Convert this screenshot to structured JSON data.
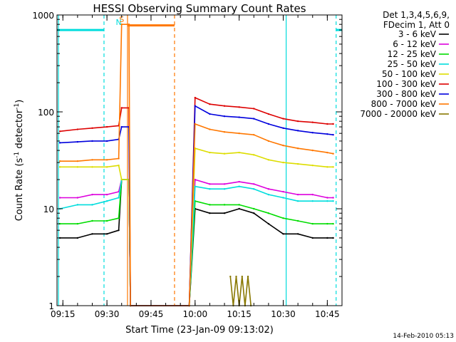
{
  "chart_data": {
    "type": "line",
    "title": "HESSI Observing Summary Count Rates",
    "xlabel": "Start Time (23-Jan-09 09:13:02)",
    "ylabel_main": "Count Rate (s",
    "ylabel_sup1": "-1",
    "ylabel_mid": " detector",
    "ylabel_sup2": "-1",
    "ylabel_end": ")",
    "footer": "14-Feb-2010 05:13",
    "y_log": true,
    "xlim": [
      "09:13",
      "10:50"
    ],
    "ylim": [
      1,
      1000
    ],
    "x_ticks": [
      "09:15",
      "09:30",
      "09:45",
      "10:00",
      "10:15",
      "10:30",
      "10:45"
    ],
    "y_ticks": [
      "1",
      "10",
      "100",
      "1000"
    ],
    "grid": false,
    "legend": {
      "position": "top-right",
      "header": [
        "Det 1,3,4,5,6,9,",
        "FDecim 1, Att 0"
      ]
    },
    "series": [
      {
        "name": "3 - 6 keV",
        "color": "#000000",
        "x": [
          "09:14",
          "09:20",
          "09:25",
          "09:30",
          "09:34",
          "09:35",
          "09:37.5",
          "09:38",
          "09:58",
          "10:00",
          "10:05",
          "10:10",
          "10:15",
          "10:20",
          "10:25",
          "10:30",
          "10:35",
          "10:40",
          "10:45",
          "10:47"
        ],
        "y": [
          5,
          5,
          5.5,
          5.5,
          6,
          20,
          20,
          1,
          1,
          10,
          9,
          9,
          10,
          9,
          7,
          5.5,
          5.5,
          5,
          5,
          5
        ]
      },
      {
        "name": "6 - 12 keV",
        "color": "#dd00dd",
        "x": [
          "09:14",
          "09:20",
          "09:25",
          "09:30",
          "09:34",
          "09:35",
          "09:37.5",
          "09:38",
          "09:58",
          "10:00",
          "10:05",
          "10:10",
          "10:15",
          "10:20",
          "10:25",
          "10:30",
          "10:35",
          "10:40",
          "10:45",
          "10:47"
        ],
        "y": [
          13,
          13,
          14,
          14,
          15,
          20,
          20,
          1,
          1,
          20,
          18,
          18,
          19,
          18,
          16,
          15,
          14,
          14,
          13,
          13
        ]
      },
      {
        "name": "12 - 25 keV",
        "color": "#00dd00",
        "x": [
          "09:14",
          "09:20",
          "09:25",
          "09:30",
          "09:34",
          "09:35",
          "09:37.5",
          "09:38",
          "09:58",
          "10:00",
          "10:05",
          "10:10",
          "10:15",
          "10:20",
          "10:25",
          "10:30",
          "10:35",
          "10:40",
          "10:45",
          "10:47"
        ],
        "y": [
          7,
          7,
          7.5,
          7.5,
          8,
          20,
          20,
          1,
          1,
          12,
          11,
          11,
          11,
          10,
          9,
          8,
          7.5,
          7,
          7,
          7
        ]
      },
      {
        "name": "25 - 50 keV",
        "color": "#00dddd",
        "x": [
          "09:14",
          "09:20",
          "09:25",
          "09:30",
          "09:34",
          "09:35",
          "09:37.5",
          "09:38",
          "09:58",
          "10:00",
          "10:05",
          "10:10",
          "10:15",
          "10:20",
          "10:25",
          "10:30",
          "10:35",
          "10:40",
          "10:45",
          "10:47"
        ],
        "y": [
          10,
          11,
          11,
          12,
          13,
          20,
          20,
          1,
          1,
          17,
          16,
          16,
          17,
          16,
          14,
          13,
          12,
          12,
          12,
          12
        ]
      },
      {
        "name": "50 - 100 keV",
        "color": "#dddd00",
        "x": [
          "09:14",
          "09:20",
          "09:25",
          "09:30",
          "09:34",
          "09:35",
          "09:37.5",
          "09:38",
          "09:58",
          "10:00",
          "10:05",
          "10:10",
          "10:15",
          "10:20",
          "10:25",
          "10:30",
          "10:35",
          "10:40",
          "10:45",
          "10:47"
        ],
        "y": [
          27,
          27,
          27,
          27,
          28,
          20,
          20,
          1,
          1,
          42,
          38,
          37,
          38,
          36,
          32,
          30,
          29,
          28,
          27,
          27
        ]
      },
      {
        "name": "100 - 300 keV",
        "color": "#dd0000",
        "x": [
          "09:14",
          "09:20",
          "09:25",
          "09:30",
          "09:34",
          "09:35",
          "09:37.5",
          "09:38",
          "09:58",
          "10:00",
          "10:05",
          "10:10",
          "10:15",
          "10:20",
          "10:25",
          "10:30",
          "10:35",
          "10:40",
          "10:45",
          "10:47"
        ],
        "y": [
          63,
          66,
          68,
          70,
          72,
          110,
          110,
          1,
          1,
          140,
          120,
          115,
          112,
          108,
          95,
          85,
          80,
          78,
          75,
          75
        ]
      },
      {
        "name": "300 - 800 keV",
        "color": "#0000dd",
        "x": [
          "09:14",
          "09:20",
          "09:25",
          "09:30",
          "09:34",
          "09:35",
          "09:37.5",
          "09:38",
          "09:58",
          "10:00",
          "10:05",
          "10:10",
          "10:15",
          "10:20",
          "10:25",
          "10:30",
          "10:35",
          "10:40",
          "10:45",
          "10:47"
        ],
        "y": [
          48,
          49,
          50,
          50,
          52,
          70,
          70,
          1,
          1,
          115,
          95,
          90,
          88,
          85,
          75,
          68,
          64,
          61,
          59,
          58
        ]
      },
      {
        "name": "800 - 7000 keV",
        "color": "#ff7700",
        "x": [
          "09:14",
          "09:20",
          "09:25",
          "09:30",
          "09:34",
          "09:35",
          "09:37.5",
          "09:38",
          "09:58",
          "10:00",
          "10:05",
          "10:10",
          "10:15",
          "10:20",
          "10:25",
          "10:30",
          "10:35",
          "10:40",
          "10:45",
          "10:47"
        ],
        "y": [
          31,
          31,
          32,
          32,
          33,
          800,
          800,
          1,
          1,
          75,
          66,
          62,
          60,
          58,
          50,
          45,
          42,
          40,
          38,
          37
        ]
      },
      {
        "name": "7000 - 20000 keV",
        "color": "#887700",
        "x": [
          "10:12",
          "10:13",
          "10:14",
          "10:15",
          "10:16",
          "10:17",
          "10:18",
          "10:19"
        ],
        "y": [
          2,
          1,
          2,
          1,
          2,
          1,
          2,
          1
        ]
      }
    ],
    "state_bars": [
      {
        "label": "",
        "color": "#00dddd",
        "x": [
          "09:13",
          "09:29"
        ],
        "y": 700
      },
      {
        "label": "",
        "color": "#00dddd",
        "x": [
          "10:48",
          "10:50"
        ],
        "y": 700
      },
      {
        "label": "",
        "color": "#ff7700",
        "x": [
          "09:37",
          "09:53"
        ],
        "y": 780
      }
    ],
    "markers": [
      {
        "label": "N",
        "color": "#00dddd",
        "x": "09:34"
      },
      {
        "label": "S",
        "color": "#ff7700",
        "x": "09:35"
      }
    ],
    "vlines": [
      {
        "x": "09:13.5",
        "color": "#00dddd",
        "style": "solid"
      },
      {
        "x": "09:29",
        "color": "#00dddd",
        "style": "dashed"
      },
      {
        "x": "09:37",
        "color": "#ff7700",
        "style": "solid"
      },
      {
        "x": "09:53",
        "color": "#ff7700",
        "style": "dashed"
      },
      {
        "x": "10:31",
        "color": "#00dddd",
        "style": "solid"
      },
      {
        "x": "10:48",
        "color": "#00dddd",
        "style": "dashed"
      }
    ]
  }
}
